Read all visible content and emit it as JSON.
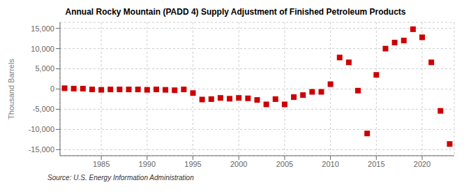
{
  "chart_data": {
    "type": "scatter",
    "title": "Annual Rocky Mountain (PADD 4) Supply Adjustment of Finished Petroleum Products",
    "ylabel": "Thousand Barrels",
    "annotations": [
      "Source: U.S. Energy Information Administration"
    ],
    "color": "#cc0000",
    "marker": "square",
    "grid": true,
    "xlim": [
      1980.5,
      2023.5
    ],
    "xticks": [
      1985,
      1990,
      1995,
      2000,
      2005,
      2010,
      2015,
      2020
    ],
    "ylim": [
      -16500,
      16500
    ],
    "yticks": [
      {
        "value": -15000,
        "label": "-15,000"
      },
      {
        "value": -10000,
        "label": "-10,000"
      },
      {
        "value": -5000,
        "label": "-5,000"
      },
      0,
      {
        "value": 5000,
        "label": "5,000"
      },
      {
        "value": 10000,
        "label": "10,000"
      },
      {
        "value": 15000,
        "label": "15,000"
      }
    ],
    "x": [
      1981,
      1982,
      1983,
      1984,
      1985,
      1986,
      1987,
      1988,
      1989,
      1990,
      1991,
      1992,
      1993,
      1994,
      1995,
      1996,
      1997,
      1998,
      1999,
      2000,
      2001,
      2002,
      2003,
      2004,
      2005,
      2006,
      2007,
      2008,
      2009,
      2010,
      2011,
      2012,
      2013,
      2014,
      2015,
      2016,
      2017,
      2018,
      2019,
      2020,
      2021,
      2022,
      2023
    ],
    "values": [
      200,
      100,
      100,
      -100,
      -200,
      -100,
      -100,
      -100,
      -100,
      -200,
      -100,
      -200,
      -300,
      -100,
      -1000,
      -2600,
      -2500,
      -2200,
      -2400,
      -2200,
      -2300,
      -2700,
      -3800,
      -2500,
      -3800,
      -2000,
      -1500,
      -700,
      -700,
      1200,
      7800,
      6600,
      -400,
      -11000,
      3500,
      10000,
      11500,
      12000,
      14800,
      12800,
      6600,
      -5400,
      -13600
    ]
  }
}
